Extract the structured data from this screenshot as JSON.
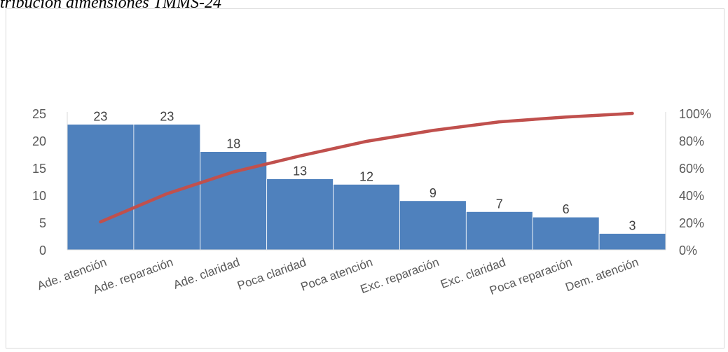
{
  "title": "tribución dimensiones TMMS-24",
  "chart_data": {
    "type": "bar",
    "title": "tribución dimensiones TMMS-24",
    "categories": [
      "Ade. atención",
      "Ade. reparación",
      "Ade. claridad",
      "Poca claridad",
      "Poca atención",
      "Exc. reparación",
      "Exc. claridad",
      "Poca reparación",
      "Dem. atención"
    ],
    "series": [
      {
        "type": "bar",
        "values": [
          23,
          23,
          18,
          13,
          12,
          9,
          7,
          6,
          3
        ],
        "color": "#4f81bd",
        "axis": "left"
      },
      {
        "type": "line",
        "values": [
          20.5,
          41.1,
          57.1,
          68.8,
          79.5,
          87.5,
          93.8,
          97.3,
          100
        ],
        "color": "#c0504d",
        "axis": "right"
      }
    ],
    "ylim": [
      0,
      25
    ],
    "yticks": [
      0,
      5,
      10,
      15,
      20,
      25
    ],
    "y2lim": [
      0,
      100
    ],
    "y2ticks": [
      "0%",
      "20%",
      "40%",
      "60%",
      "80%",
      "100%"
    ],
    "data_labels": true,
    "grid": false,
    "legend": "none"
  }
}
